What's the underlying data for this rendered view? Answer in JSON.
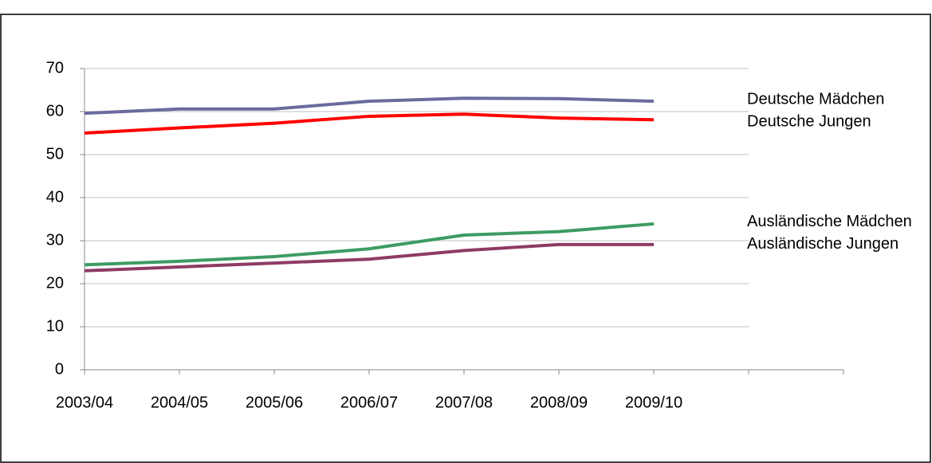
{
  "chart_data": {
    "type": "line",
    "categories": [
      "2003/04",
      "2004/05",
      "2005/06",
      "2006/07",
      "2007/08",
      "2008/09",
      "2009/10",
      null
    ],
    "series": [
      {
        "name": "Deutsche Mädchen",
        "color": "#6b6b9e",
        "values": [
          59.6,
          60.6,
          60.6,
          62.4,
          63.1,
          63.0,
          62.4,
          null
        ]
      },
      {
        "name": "Deutsche Jungen",
        "color": "#ff0000",
        "values": [
          55.0,
          56.2,
          57.3,
          58.9,
          59.4,
          58.5,
          58.1,
          null
        ]
      },
      {
        "name": "Ausländische Mädchen",
        "color": "#3d9b63",
        "values": [
          24.4,
          25.2,
          26.3,
          28.1,
          31.3,
          32.1,
          33.9,
          null
        ]
      },
      {
        "name": "Ausländische Jungen",
        "color": "#8e3b64",
        "values": [
          23.0,
          23.9,
          24.8,
          25.7,
          27.7,
          29.1,
          29.1,
          null
        ]
      }
    ],
    "ylim": [
      0,
      70
    ],
    "yticks": [
      0,
      10,
      20,
      30,
      40,
      50,
      60,
      70
    ],
    "grid": true
  }
}
